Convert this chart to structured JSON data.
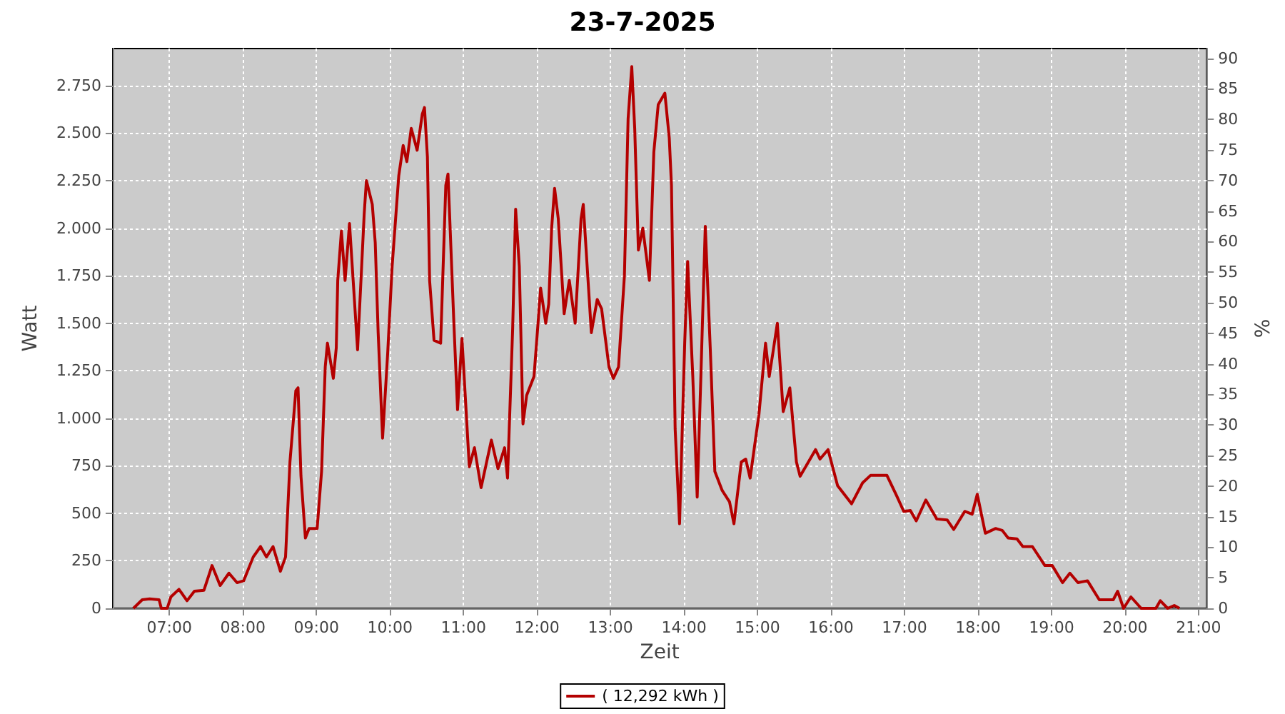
{
  "chart_data": {
    "type": "line",
    "title": "23-7-2025",
    "xlabel": "Zeit",
    "ylabel": "Watt",
    "y2label": "%",
    "x": [
      6.51,
      6.63,
      6.73,
      6.86,
      6.89,
      6.97,
      7.02,
      7.13,
      7.24,
      7.34,
      7.47,
      7.58,
      7.69,
      7.81,
      7.92,
      8.01,
      8.14,
      8.24,
      8.32,
      8.41,
      8.51,
      8.58,
      8.64,
      8.72,
      8.75,
      8.79,
      8.85,
      8.9,
      9.01,
      9.07,
      9.12,
      9.15,
      9.23,
      9.27,
      9.29,
      9.34,
      9.39,
      9.45,
      9.5,
      9.56,
      9.65,
      9.68,
      9.76,
      9.8,
      9.84,
      9.9,
      9.97,
      10.03,
      10.12,
      10.18,
      10.23,
      10.29,
      10.37,
      10.44,
      10.47,
      10.51,
      10.54,
      10.6,
      10.69,
      10.76,
      10.79,
      10.87,
      10.92,
      10.98,
      11.08,
      11.15,
      11.24,
      11.38,
      11.47,
      11.56,
      11.6,
      11.67,
      11.71,
      11.76,
      11.81,
      11.86,
      11.96,
      12.01,
      12.05,
      12.12,
      12.16,
      12.2,
      12.24,
      12.29,
      12.37,
      12.44,
      12.52,
      12.6,
      12.63,
      12.74,
      12.82,
      12.88,
      12.98,
      13.04,
      13.11,
      13.19,
      13.24,
      13.29,
      13.33,
      13.38,
      13.44,
      13.53,
      13.59,
      13.65,
      13.74,
      13.8,
      13.83,
      13.88,
      13.94,
      14.01,
      14.05,
      14.12,
      14.18,
      14.23,
      14.29,
      14.36,
      14.42,
      14.52,
      14.62,
      14.68,
      14.78,
      14.84,
      14.9,
      15.02,
      15.11,
      15.16,
      15.21,
      15.27,
      15.35,
      15.44,
      15.53,
      15.58,
      15.79,
      15.85,
      15.96,
      16.09,
      16.28,
      16.43,
      16.54,
      16.76,
      16.89,
      16.99,
      17.08,
      17.16,
      17.29,
      17.44,
      17.58,
      17.67,
      17.82,
      17.92,
      17.99,
      18.1,
      18.24,
      18.33,
      18.41,
      18.53,
      18.61,
      18.74,
      18.91,
      19.01,
      19.15,
      19.25,
      19.36,
      19.49,
      19.65,
      19.84,
      19.9,
      19.98,
      20.08,
      20.22,
      20.42,
      20.48,
      20.58,
      20.67,
      20.74
    ],
    "series": [
      {
        "name": "( 12,292 kWh )",
        "color": "#b40000",
        "values": [
          0,
          45,
          50,
          45,
          0,
          0,
          60,
          100,
          40,
          90,
          95,
          225,
          120,
          185,
          135,
          145,
          270,
          325,
          270,
          325,
          195,
          270,
          770,
          1145,
          1160,
          695,
          370,
          420,
          420,
          720,
          1270,
          1395,
          1210,
          1370,
          1725,
          1985,
          1725,
          2025,
          1725,
          1360,
          2075,
          2250,
          2125,
          1925,
          1450,
          895,
          1345,
          1800,
          2275,
          2435,
          2350,
          2525,
          2410,
          2600,
          2635,
          2375,
          1725,
          1410,
          1395,
          2225,
          2285,
          1500,
          1045,
          1420,
          745,
          845,
          635,
          885,
          735,
          845,
          685,
          1475,
          2100,
          1800,
          970,
          1120,
          1220,
          1475,
          1685,
          1500,
          1600,
          2000,
          2210,
          2050,
          1550,
          1725,
          1500,
          2050,
          2125,
          1450,
          1625,
          1575,
          1270,
          1210,
          1270,
          1750,
          2575,
          2850,
          2525,
          1885,
          2000,
          1725,
          2400,
          2650,
          2710,
          2475,
          2225,
          945,
          445,
          1395,
          1825,
          1220,
          585,
          1220,
          2010,
          1345,
          720,
          620,
          560,
          445,
          770,
          785,
          685,
          1020,
          1395,
          1220,
          1345,
          1500,
          1035,
          1160,
          770,
          695,
          835,
          785,
          835,
          645,
          550,
          660,
          700,
          700,
          595,
          510,
          515,
          460,
          570,
          470,
          465,
          415,
          510,
          495,
          600,
          395,
          420,
          410,
          370,
          365,
          325,
          325,
          225,
          225,
          135,
          185,
          135,
          145,
          45,
          45,
          90,
          0,
          60,
          0,
          0,
          40,
          0,
          15,
          0
        ]
      }
    ],
    "xlim": [
      6.23,
      21.11
    ],
    "xticks": [
      {
        "value": 7,
        "label": "07:00"
      },
      {
        "value": 8,
        "label": "08:00"
      },
      {
        "value": 9,
        "label": "09:00"
      },
      {
        "value": 10,
        "label": "10:00"
      },
      {
        "value": 11,
        "label": "11:00"
      },
      {
        "value": 12,
        "label": "12:00"
      },
      {
        "value": 13,
        "label": "13:00"
      },
      {
        "value": 14,
        "label": "14:00"
      },
      {
        "value": 15,
        "label": "15:00"
      },
      {
        "value": 16,
        "label": "16:00"
      },
      {
        "value": 17,
        "label": "17:00"
      },
      {
        "value": 18,
        "label": "18:00"
      },
      {
        "value": 19,
        "label": "19:00"
      },
      {
        "value": 20,
        "label": "20:00"
      },
      {
        "value": 21,
        "label": "21:00"
      }
    ],
    "ylim": [
      0,
      2945
    ],
    "yticks": [
      0,
      250,
      500,
      750,
      {
        "value": 1000,
        "label": "1.000"
      },
      {
        "value": 1250,
        "label": "1.250"
      },
      {
        "value": 1500,
        "label": "1.500"
      },
      {
        "value": 1750,
        "label": "1.750"
      },
      {
        "value": 2000,
        "label": "2.000"
      },
      {
        "value": 2250,
        "label": "2.250"
      },
      {
        "value": 2500,
        "label": "2.500"
      },
      {
        "value": 2750,
        "label": "2.750"
      }
    ],
    "y2lim": [
      0,
      91.6
    ],
    "y2ticks": [
      0,
      5,
      10,
      15,
      20,
      25,
      30,
      35,
      40,
      45,
      50,
      55,
      60,
      65,
      70,
      75,
      80,
      85,
      90
    ],
    "grid": true,
    "legend": "bottom",
    "marker": "none",
    "line_style": "solid"
  }
}
